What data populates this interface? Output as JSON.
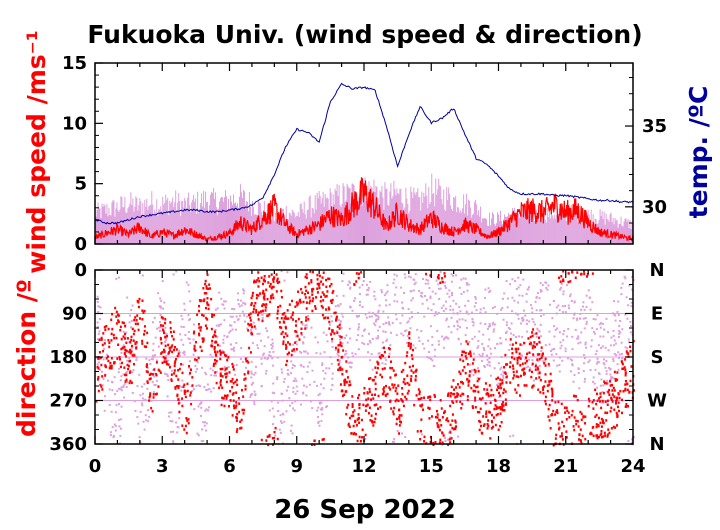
{
  "chart_data": [
    {
      "type": "line",
      "title": "Fukuoka Univ. (wind speed & direction)",
      "ylabel": "wind speed /ms⁻¹",
      "y2label": "temp. /ºC",
      "xlim": [
        0,
        24
      ],
      "ylim": [
        0,
        15
      ],
      "y2lim": [
        27.7,
        38.9
      ],
      "yticks": [
        "0",
        "5",
        "10",
        "15"
      ],
      "y2ticks": [
        "30",
        "35"
      ],
      "colors": {
        "wind_mean": "#ff0000",
        "wind_gust": "#dda0dd",
        "temperature": "#00009f"
      },
      "series": [
        {
          "key": "wind_gust",
          "x": [
            0,
            0.5,
            1,
            1.5,
            2,
            2.5,
            3,
            3.5,
            4,
            4.5,
            5,
            5.5,
            6,
            6.5,
            7,
            7.5,
            8,
            8.5,
            9,
            9.5,
            10,
            10.5,
            11,
            11.5,
            12,
            12.5,
            13,
            13.5,
            14,
            14.5,
            15,
            15.5,
            16,
            16.5,
            17,
            17.5,
            18,
            18.5,
            19,
            19.5,
            20,
            20.5,
            21,
            21.5,
            22,
            22.5,
            23,
            23.5,
            24
          ],
          "values": [
            3.2,
            3.5,
            3.8,
            4.2,
            3.9,
            4.3,
            4.1,
            4.4,
            4.0,
            4.2,
            4.6,
            4.3,
            4.5,
            4.8,
            4.2,
            3.6,
            2.8,
            3.4,
            3.0,
            3.8,
            4.2,
            4.6,
            5.0,
            5.2,
            5.5,
            5.6,
            4.8,
            5.2,
            4.6,
            4.4,
            5.6,
            5.0,
            4.6,
            4.2,
            3.8,
            2.6,
            2.6,
            3.0,
            3.1,
            3.1,
            3.2,
            3.2,
            3.2,
            3.1,
            3.0,
            2.8,
            2.6,
            2.3,
            2.0
          ]
        },
        {
          "key": "wind_mean",
          "x": [
            0,
            0.5,
            1,
            1.5,
            2,
            2.5,
            3,
            3.5,
            4,
            4.5,
            5,
            5.5,
            6,
            6.5,
            7,
            7.5,
            8,
            8.5,
            9,
            9.5,
            10,
            10.5,
            11,
            11.5,
            12,
            12.5,
            13,
            13.5,
            14,
            14.5,
            15,
            15.5,
            16,
            16.5,
            17,
            17.5,
            18,
            18.5,
            19,
            19.5,
            20,
            20.5,
            21,
            21.5,
            22,
            22.5,
            23,
            23.5,
            24
          ],
          "values": [
            0.5,
            0.9,
            1.2,
            0.8,
            1.4,
            0.6,
            1.0,
            0.7,
            1.2,
            0.8,
            0.4,
            0.6,
            0.9,
            1.8,
            1.2,
            2.2,
            3.0,
            1.6,
            0.8,
            1.2,
            1.6,
            2.4,
            2.0,
            3.2,
            4.2,
            3.0,
            1.4,
            2.6,
            1.6,
            1.2,
            2.2,
            1.4,
            1.0,
            1.6,
            1.2,
            0.6,
            1.0,
            1.8,
            2.6,
            2.8,
            2.6,
            3.2,
            2.6,
            2.8,
            1.8,
            1.0,
            0.8,
            0.6,
            0.4
          ]
        },
        {
          "key": "temperature",
          "axis": "right",
          "x": [
            0,
            0.5,
            1,
            1.5,
            2,
            2.5,
            3,
            3.5,
            4,
            4.5,
            5,
            5.5,
            6,
            6.5,
            7,
            7.5,
            8,
            8.5,
            9,
            9.5,
            10,
            10.5,
            11,
            11.5,
            12,
            12.5,
            13,
            13.5,
            14,
            14.5,
            15,
            15.5,
            16,
            16.5,
            17,
            17.5,
            18,
            18.5,
            19,
            19.5,
            20,
            20.5,
            21,
            21.5,
            22,
            22.5,
            23,
            23.5,
            24
          ],
          "values": [
            29.2,
            29.0,
            29.0,
            29.2,
            29.4,
            29.5,
            29.6,
            29.7,
            29.8,
            29.8,
            29.7,
            29.7,
            29.8,
            29.9,
            30.1,
            30.6,
            32.0,
            33.7,
            34.8,
            34.6,
            34.0,
            36.5,
            37.6,
            37.3,
            37.4,
            37.2,
            35.0,
            32.5,
            34.5,
            36.2,
            35.2,
            35.5,
            36.1,
            34.5,
            33.0,
            32.6,
            31.9,
            31.1,
            30.8,
            30.8,
            30.8,
            30.7,
            30.7,
            30.6,
            30.5,
            30.4,
            30.4,
            30.3,
            30.3
          ]
        }
      ]
    },
    {
      "type": "scatter",
      "ylabel": "direction /º",
      "xlabel": "26 Sep 2022",
      "xlim": [
        0,
        24
      ],
      "ylim": [
        0,
        360
      ],
      "y_inverted": true,
      "xticks": [
        "0",
        "3",
        "6",
        "9",
        "12",
        "15",
        "18",
        "21",
        "24"
      ],
      "yticks": [
        "0",
        "90",
        "180",
        "270",
        "360"
      ],
      "y2ticks": [
        "N",
        "E",
        "S",
        "W",
        "N"
      ],
      "gridlines_y": [
        90,
        180,
        270
      ],
      "colors": {
        "wind_mean": "#ff0000",
        "wind_gust": "#dda0dd"
      },
      "series": [
        {
          "key": "direction_mean",
          "x": [
            0,
            0.5,
            1,
            1.5,
            2,
            2.5,
            3,
            3.5,
            4,
            4.5,
            5,
            5.5,
            6,
            6.5,
            7,
            7.5,
            8,
            8.5,
            9,
            9.5,
            10,
            10.5,
            11,
            11.5,
            12,
            12.5,
            13,
            13.5,
            14,
            14.5,
            15,
            15.5,
            16,
            16.5,
            17,
            17.5,
            18,
            18.5,
            19,
            19.5,
            20,
            20.5,
            21,
            21.5,
            22,
            22.5,
            23,
            23.5,
            24
          ],
          "values": [
            220,
            160,
            120,
            200,
            80,
            260,
            130,
            180,
            300,
            140,
            60,
            220,
            240,
            300,
            70,
            40,
            20,
            140,
            100,
            50,
            30,
            80,
            200,
            330,
            300,
            250,
            200,
            280,
            180,
            320,
            310,
            330,
            280,
            200,
            260,
            300,
            270,
            190,
            200,
            180,
            200,
            320,
            330,
            310,
            320,
            290,
            280,
            240,
            200
          ]
        },
        {
          "key": "direction_gust",
          "x": [
            0,
            0.5,
            1,
            1.5,
            2,
            2.5,
            3,
            3.5,
            4,
            4.5,
            5,
            5.5,
            6,
            6.5,
            7,
            7.5,
            8,
            8.5,
            9,
            9.5,
            10,
            10.5,
            11,
            11.5,
            12,
            12.5,
            13,
            13.5,
            14,
            14.5,
            15,
            15.5,
            16,
            16.5,
            17,
            17.5,
            18,
            18.5,
            19,
            19.5,
            20,
            20.5,
            21,
            21.5,
            22,
            22.5,
            23,
            23.5,
            24
          ],
          "values": [
            90,
            240,
            300,
            100,
            320,
            180,
            90,
            340,
            60,
            250,
            300,
            100,
            180,
            90,
            200,
            150,
            260,
            300,
            200,
            180,
            240,
            160,
            90,
            120,
            60,
            140,
            100,
            40,
            90,
            60,
            120,
            80,
            40,
            100,
            150,
            120,
            180,
            60,
            90,
            140,
            100,
            150,
            80,
            180,
            120,
            200,
            160,
            100,
            60
          ]
        }
      ]
    }
  ]
}
